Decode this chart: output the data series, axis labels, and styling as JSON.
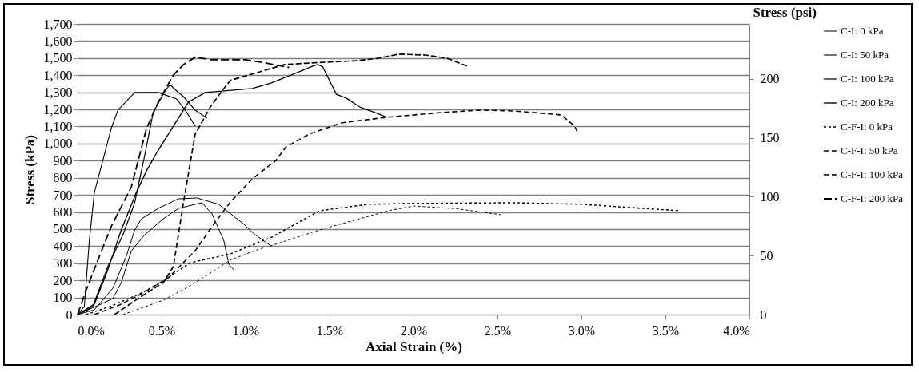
{
  "chart_data": {
    "type": "line",
    "xlabel": "Axial Strain (%)",
    "ylabel": "Stress (kPa)",
    "y2label": "Stress (psi)",
    "xlim": [
      0,
      4
    ],
    "xticks": [
      {
        "value": 0,
        "label": "0.0%"
      },
      {
        "value": 0.5,
        "label": "0.5%"
      },
      {
        "value": 1,
        "label": "1.0%"
      },
      {
        "value": 1.5,
        "label": "1.5%"
      },
      {
        "value": 2,
        "label": "2.0%"
      },
      {
        "value": 2.5,
        "label": "2.5%"
      },
      {
        "value": 3,
        "label": "3.0%"
      },
      {
        "value": 3.5,
        "label": "3.5%"
      },
      {
        "value": 4,
        "label": "4.0%"
      }
    ],
    "ylim": [
      0,
      1700
    ],
    "yticks": [
      0,
      100,
      200,
      300,
      400,
      500,
      600,
      700,
      800,
      900,
      {
        "value": 1000,
        "label": "1,000"
      },
      {
        "value": 1100,
        "label": "1,100"
      },
      {
        "value": 1200,
        "label": "1,200"
      },
      {
        "value": 1300,
        "label": "1,300"
      },
      {
        "value": 1400,
        "label": "1,400"
      },
      {
        "value": 1500,
        "label": "1,500"
      },
      {
        "value": 1600,
        "label": "1,600"
      },
      {
        "value": 1700,
        "label": "1,700"
      }
    ],
    "y2lim": [
      0,
      246.6
    ],
    "y2ticks": [
      0,
      50,
      100,
      150,
      200
    ],
    "grid": "y",
    "legend": "right",
    "marker": "none",
    "series": [
      {
        "name": "C-I: 0 kPa",
        "color": "#000000",
        "line_style": "solid",
        "x": [
          0,
          0.1,
          0.21,
          0.29,
          0.34,
          0.38,
          0.48,
          0.6,
          0.71,
          0.84,
          0.99,
          1.05,
          1.15
        ],
        "values": [
          0,
          28,
          154,
          341,
          495,
          560,
          621,
          677,
          682,
          645,
          528,
          472,
          402
        ]
      },
      {
        "name": "C-I: 50 kPa",
        "color": "#000000",
        "line_style": "solid",
        "x": [
          0,
          0.04,
          0.07,
          0.1,
          0.15,
          0.2,
          0.24,
          0.34,
          0.48,
          0.59,
          0.65,
          0.7
        ],
        "values": [
          0,
          47,
          434,
          715,
          901,
          1088,
          1196,
          1299,
          1299,
          1261,
          1182,
          1102
        ]
      },
      {
        "name": "C-I: 100 kPa",
        "color": "#000000",
        "line_style": "solid",
        "x": [
          0,
          0.09,
          0.18,
          0.27,
          0.34,
          0.4,
          0.45,
          0.52,
          0.55,
          0.59,
          0.63,
          0.7,
          0.77
        ],
        "values": [
          0,
          47,
          280,
          467,
          654,
          934,
          1182,
          1308,
          1345,
          1308,
          1275,
          1196,
          1149
        ]
      },
      {
        "name": "C-I: 200 kPa",
        "color": "#000000",
        "line_style": "solid",
        "x": [
          0,
          0.1,
          0.18,
          0.26,
          0.35,
          0.41,
          0.48,
          0.57,
          0.66,
          0.76,
          1.04,
          1.15,
          1.27,
          1.4,
          1.43,
          1.46,
          1.54,
          1.6,
          1.68,
          1.77,
          1.84
        ],
        "values": [
          0,
          61,
          262,
          495,
          715,
          841,
          962,
          1102,
          1243,
          1299,
          1322,
          1354,
          1401,
          1453,
          1462,
          1448,
          1289,
          1266,
          1214,
          1182,
          1154
        ]
      },
      {
        "name": "C-F-I: 0 kPa",
        "color": "#000000",
        "line_style": "dashed",
        "x": [
          0.05,
          0.2,
          0.37,
          0.5,
          0.67,
          0.91,
          1.05,
          1.15,
          1.44,
          1.73,
          2.0,
          2.6,
          3.0,
          3.59
        ],
        "values": [
          0,
          50,
          121,
          190,
          303,
          355,
          411,
          450,
          607,
          645,
          650,
          654,
          645,
          607
        ]
      },
      {
        "name": "C-F-I: 50 kPa",
        "color": "#000000",
        "line_style": "dashed",
        "x": [
          0.1,
          0.26,
          0.38,
          0.54,
          0.7,
          0.82,
          0.91,
          1.04,
          1.18,
          1.24,
          1.38,
          1.57,
          1.84,
          2.17,
          2.4,
          2.6,
          2.88,
          2.96,
          2.98
        ],
        "values": [
          0,
          61,
          121,
          215,
          373,
          542,
          658,
          794,
          901,
          980,
          1056,
          1121,
          1154,
          1182,
          1196,
          1191,
          1168,
          1102,
          1060
        ]
      },
      {
        "name": "C-F-I: 100 kPa",
        "color": "#000000",
        "line_style": "dashed",
        "x": [
          0.22,
          0.38,
          0.51,
          0.57,
          0.63,
          0.7,
          0.79,
          0.87,
          0.91,
          1.05,
          1.23,
          1.38,
          1.66,
          1.79,
          1.91,
          2.07,
          2.2,
          2.32
        ],
        "values": [
          0,
          107,
          187,
          280,
          654,
          1056,
          1214,
          1322,
          1370,
          1410,
          1462,
          1471,
          1485,
          1499,
          1523,
          1518,
          1499,
          1453
        ]
      },
      {
        "name": "C-F-I: 200 kPa",
        "color": "#000000",
        "line_style": "dashed",
        "x": [
          0,
          0.05,
          0.13,
          0.2,
          0.32,
          0.41,
          0.48,
          0.57,
          0.63,
          0.7,
          0.8,
          1.0,
          1.1,
          1.26
        ],
        "values": [
          0,
          140,
          341,
          514,
          747,
          1088,
          1243,
          1401,
          1462,
          1505,
          1490,
          1490,
          1475,
          1445
        ]
      },
      {
        "color": "#000000",
        "line_style": "solid",
        "x": [
          0,
          0.21,
          0.26,
          0.32,
          0.4,
          0.51,
          0.6,
          0.74,
          0.8,
          0.87,
          0.9,
          0.93
        ],
        "values": [
          0,
          93,
          187,
          373,
          467,
          560,
          621,
          654,
          589,
          434,
          294,
          262
        ]
      },
      {
        "color": "#000000",
        "line_style": "dashed",
        "x": [
          0.27,
          0.51,
          0.67,
          0.91,
          1.05,
          1.15,
          1.44,
          1.85,
          2.0,
          2.25,
          2.52
        ],
        "values": [
          0,
          84,
          168,
          318,
          373,
          402,
          495,
          607,
          635,
          620,
          584
        ]
      }
    ]
  }
}
